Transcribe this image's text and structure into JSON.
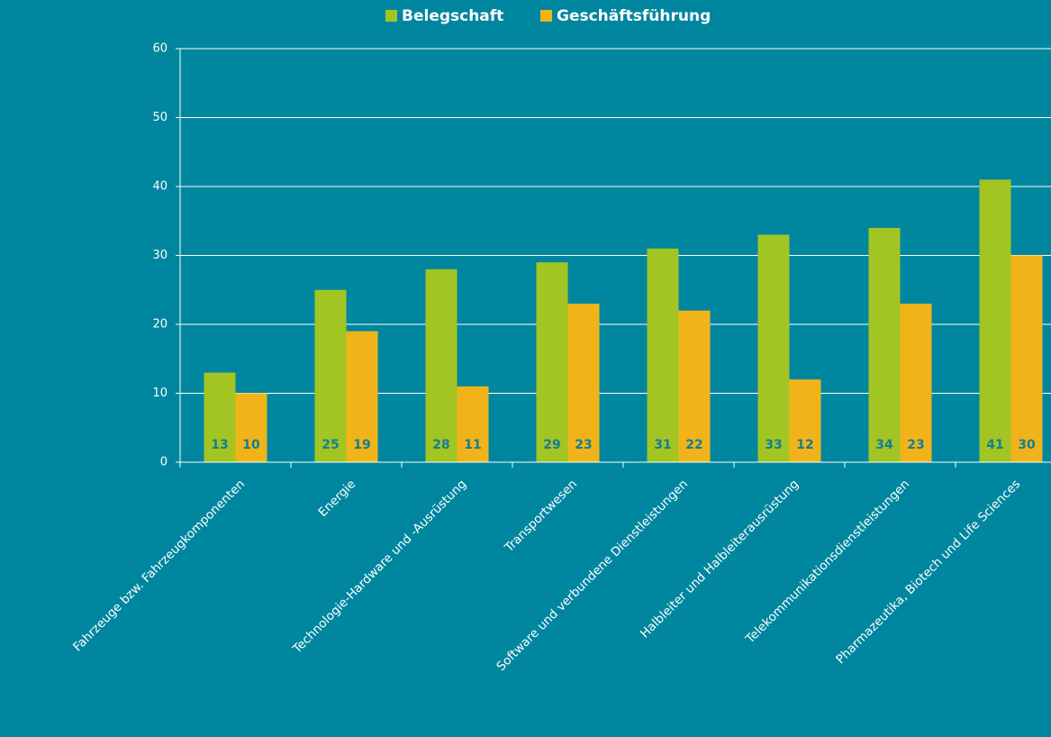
{
  "chart_data": {
    "type": "bar",
    "categories": [
      "Fahrzeuge bzw. Fahrzeugkomponenten",
      "Energie",
      "Technologie-Hardware und -Ausrüstung",
      "Transportwesen",
      "Software und verbundene Dienstleistungen",
      "Halbleiter und Halbleiterausrüstung",
      "Telekommunikationsdienstleistungen",
      "Pharmazeutika, Biotech und Life Sciences"
    ],
    "series": [
      {
        "name": "Belegschaft",
        "color": "#a2c523",
        "values": [
          13,
          25,
          28,
          29,
          31,
          33,
          34,
          41
        ]
      },
      {
        "name": "Geschäftsführung",
        "color": "#f0b41a",
        "values": [
          10,
          19,
          11,
          23,
          22,
          12,
          23,
          30
        ]
      }
    ],
    "ylim": [
      0,
      60
    ],
    "yticks": [
      0,
      10,
      20,
      30,
      40,
      50,
      60
    ],
    "grid": true,
    "legend": "top"
  }
}
